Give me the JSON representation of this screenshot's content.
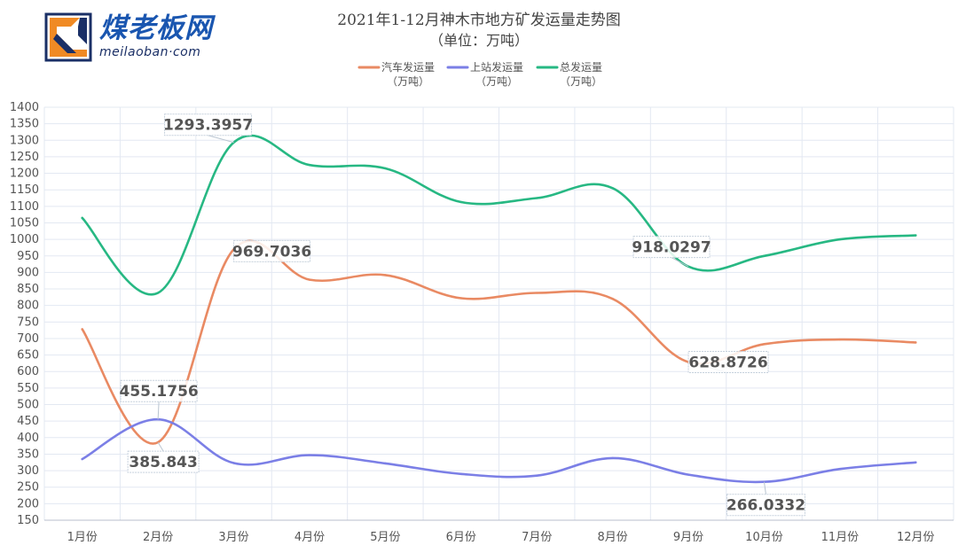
{
  "logo": {
    "cn_text": "煤老板网",
    "en_text": "meilaoban·com"
  },
  "colors": {
    "truck": "#e98a63",
    "rail": "#7b7fe6",
    "total": "#27b883",
    "grid": "#e3e8f2",
    "axis_text": "#555555"
  },
  "chart_data": {
    "type": "line",
    "title": "2021年1-12月神木市地方矿发运量走势图",
    "subtitle": "（单位：万吨）",
    "categories": [
      "1月份",
      "2月份",
      "3月份",
      "4月份",
      "5月份",
      "6月份",
      "7月份",
      "8月份",
      "9月份",
      "10月份",
      "11月份",
      "12月份"
    ],
    "ylim": [
      150,
      1400
    ],
    "yticks": [
      150,
      200,
      250,
      300,
      350,
      400,
      450,
      500,
      550,
      600,
      650,
      700,
      750,
      800,
      850,
      900,
      950,
      1000,
      1050,
      1100,
      1150,
      1200,
      1250,
      1300,
      1350,
      1400
    ],
    "grid": true,
    "legend_position": "top-center",
    "series": [
      {
        "key": "truck",
        "name": "汽车发运量",
        "name_unit": "（万吨）",
        "values": [
          728,
          385.843,
          969.7036,
          878,
          892,
          822,
          838,
          820,
          628.8726,
          683,
          697,
          688
        ]
      },
      {
        "key": "rail",
        "name": "上站发运量",
        "name_unit": "（万吨）",
        "values": [
          335,
          455.1756,
          323,
          347,
          322,
          290,
          285,
          338,
          288,
          266.0332,
          305,
          325
        ]
      },
      {
        "key": "total",
        "name": "总发运量",
        "name_unit": "（万吨）",
        "values": [
          1065,
          838,
          1293.3957,
          1225,
          1215,
          1113,
          1125,
          1155,
          918.0297,
          950,
          1000,
          1012
        ]
      }
    ],
    "annotations": [
      {
        "series": "total",
        "index": 2,
        "text": "1293.3957"
      },
      {
        "series": "truck",
        "index": 2,
        "text": "969.7036"
      },
      {
        "series": "total",
        "index": 8,
        "text": "918.0297"
      },
      {
        "series": "truck",
        "index": 8,
        "text": "628.8726"
      },
      {
        "series": "rail",
        "index": 1,
        "text": "455.1756"
      },
      {
        "series": "truck",
        "index": 1,
        "text": "385.843"
      },
      {
        "series": "rail",
        "index": 9,
        "text": "266.0332"
      }
    ]
  }
}
